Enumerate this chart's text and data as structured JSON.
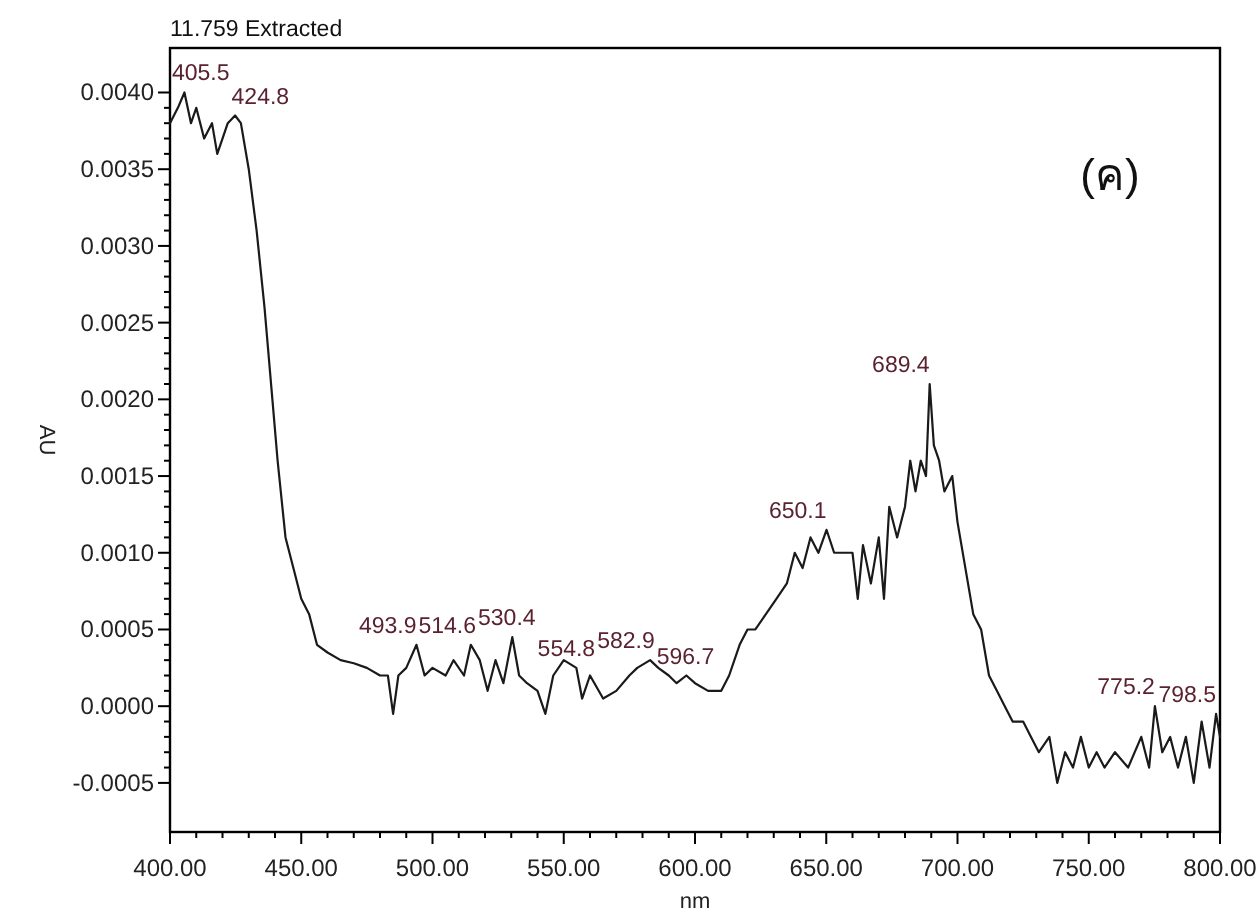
{
  "chart_data": {
    "type": "line",
    "title": "11.759 Extracted",
    "xlabel": "nm",
    "ylabel": "AU",
    "xlim": [
      400,
      800
    ],
    "ylim": [
      -0.00082,
      0.00429
    ],
    "xticks": [
      {
        "value": 400,
        "label": "400.00"
      },
      {
        "value": 450,
        "label": "450.00"
      },
      {
        "value": 500,
        "label": "500.00"
      },
      {
        "value": 550,
        "label": "550.00"
      },
      {
        "value": 600,
        "label": "600.00"
      },
      {
        "value": 650,
        "label": "650.00"
      },
      {
        "value": 700,
        "label": "700.00"
      },
      {
        "value": 750,
        "label": "750.00"
      },
      {
        "value": 800,
        "label": "800.00"
      }
    ],
    "yticks": [
      {
        "value": -0.0005,
        "label": "-0.0005"
      },
      {
        "value": 0,
        "label": "0.0000"
      },
      {
        "value": 0.0005,
        "label": "0.0005"
      },
      {
        "value": 0.001,
        "label": "0.0010"
      },
      {
        "value": 0.0015,
        "label": "0.0015"
      },
      {
        "value": 0.002,
        "label": "0.0020"
      },
      {
        "value": 0.0025,
        "label": "0.0025"
      },
      {
        "value": 0.003,
        "label": "0.0030"
      },
      {
        "value": 0.0035,
        "label": "0.0035"
      },
      {
        "value": 0.004,
        "label": "0.0040"
      }
    ],
    "grid": false,
    "x": [
      400,
      403,
      405.5,
      408,
      410,
      413,
      416,
      418,
      420,
      422,
      424.8,
      427,
      430,
      433,
      436,
      439,
      441,
      444,
      447,
      450,
      453,
      456,
      460,
      465,
      470,
      475,
      480,
      483,
      485,
      487,
      490,
      493.9,
      497,
      500,
      505,
      508,
      512,
      514.6,
      518,
      521,
      524,
      527,
      530.4,
      533,
      536,
      540,
      543,
      546,
      550,
      554.8,
      557,
      560,
      565,
      570,
      575,
      578,
      582.9,
      586,
      590,
      593,
      596.7,
      600,
      605,
      610,
      613,
      617,
      620,
      623,
      627,
      631,
      635,
      638,
      641,
      644,
      647,
      650.1,
      653,
      656,
      660,
      662,
      664,
      667,
      670,
      672,
      674,
      677,
      680,
      682,
      684,
      686,
      688,
      689.4,
      691,
      693,
      695,
      698,
      700,
      703,
      706,
      709,
      712,
      715,
      718,
      721,
      725,
      728,
      731,
      735,
      738,
      741,
      744,
      747,
      750,
      753,
      756,
      760,
      765,
      770,
      773,
      775.2,
      778,
      781,
      784,
      787,
      790,
      793,
      796,
      798.5,
      800
    ],
    "series": [
      {
        "color": "#1a1a1a",
        "values": [
          0.0038,
          0.0039,
          0.004,
          0.0038,
          0.0039,
          0.0037,
          0.0038,
          0.0036,
          0.0037,
          0.0038,
          0.00385,
          0.0038,
          0.0035,
          0.0031,
          0.0026,
          0.002,
          0.0016,
          0.0011,
          0.0009,
          0.0007,
          0.0006,
          0.0004,
          0.00035,
          0.0003,
          0.00028,
          0.00025,
          0.0002,
          0.0002,
          -5e-05,
          0.0002,
          0.00025,
          0.0004,
          0.0002,
          0.00025,
          0.0002,
          0.0003,
          0.0002,
          0.0004,
          0.0003,
          0.0001,
          0.0003,
          0.00015,
          0.00045,
          0.0002,
          0.00015,
          0.0001,
          -5e-05,
          0.0002,
          0.0003,
          0.00025,
          5e-05,
          0.0002,
          5e-05,
          0.0001,
          0.0002,
          0.00025,
          0.0003,
          0.00025,
          0.0002,
          0.00015,
          0.0002,
          0.00015,
          0.0001,
          0.0001,
          0.0002,
          0.0004,
          0.0005,
          0.0005,
          0.0006,
          0.0007,
          0.0008,
          0.001,
          0.0009,
          0.0011,
          0.001,
          0.00115,
          0.001,
          0.001,
          0.001,
          0.0007,
          0.00105,
          0.0008,
          0.0011,
          0.0007,
          0.0013,
          0.0011,
          0.0013,
          0.0016,
          0.0014,
          0.0016,
          0.0015,
          0.0021,
          0.0017,
          0.0016,
          0.0014,
          0.0015,
          0.0012,
          0.0009,
          0.0006,
          0.0005,
          0.0002,
          0.0001,
          0,
          -0.0001,
          -0.0001,
          -0.0002,
          -0.0003,
          -0.0002,
          -0.0005,
          -0.0003,
          -0.0004,
          -0.0002,
          -0.0004,
          -0.0003,
          -0.0004,
          -0.0003,
          -0.0004,
          -0.0002,
          -0.0004,
          0,
          -0.0003,
          -0.0002,
          -0.0004,
          -0.0002,
          -0.0005,
          -0.0001,
          -0.0004,
          -5e-05,
          -0.0002
        ]
      }
    ],
    "annotations": [
      {
        "text": "405.5",
        "x": 405.5,
        "y": 0.004
      },
      {
        "text": "424.8",
        "x": 424.8,
        "y": 0.00385
      },
      {
        "text": "493.9",
        "x": 493.9,
        "y": 0.0004
      },
      {
        "text": "514.6",
        "x": 514.6,
        "y": 0.0004
      },
      {
        "text": "530.4",
        "x": 530.4,
        "y": 0.00045
      },
      {
        "text": "554.8",
        "x": 554.8,
        "y": 0.00025
      },
      {
        "text": "582.9",
        "x": 582.9,
        "y": 0.0003
      },
      {
        "text": "596.7",
        "x": 596.7,
        "y": 0.0002
      },
      {
        "text": "650.1",
        "x": 650.1,
        "y": 0.00115
      },
      {
        "text": "689.4",
        "x": 689.4,
        "y": 0.0021
      },
      {
        "text": "775.2",
        "x": 775.2,
        "y": 0
      },
      {
        "text": "798.5",
        "x": 798.5,
        "y": -5e-05
      },
      "(ค)"
    ]
  }
}
